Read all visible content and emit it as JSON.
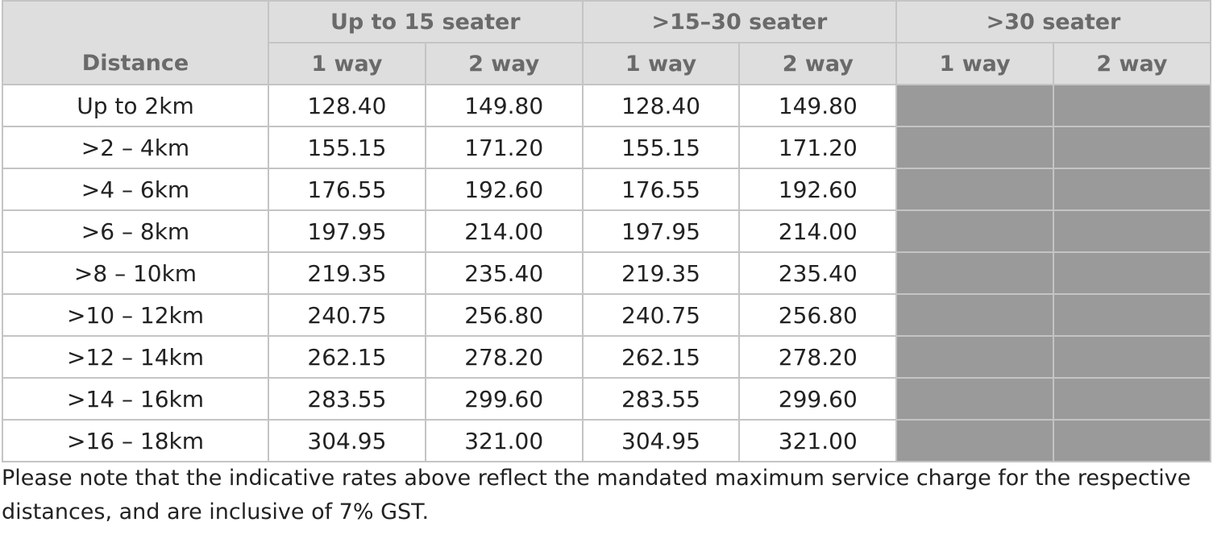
{
  "table": {
    "distance_header": "Distance",
    "groups": [
      "Up to 15 seater",
      ">15–30 seater",
      ">30 seater"
    ],
    "subheaders": [
      "1 way",
      "2 way",
      "1 way",
      "2 way",
      "1 way",
      "2 way"
    ],
    "rows": [
      {
        "distance": "Up to 2km",
        "values": [
          "128.40",
          "149.80",
          "128.40",
          "149.80",
          "",
          ""
        ]
      },
      {
        "distance": ">2 – 4km",
        "values": [
          "155.15",
          "171.20",
          "155.15",
          "171.20",
          "",
          ""
        ]
      },
      {
        "distance": ">4 – 6km",
        "values": [
          "176.55",
          "192.60",
          "176.55",
          "192.60",
          "",
          ""
        ]
      },
      {
        "distance": ">6 – 8km",
        "values": [
          "197.95",
          "214.00",
          "197.95",
          "214.00",
          "",
          ""
        ]
      },
      {
        "distance": ">8 – 10km",
        "values": [
          "219.35",
          "235.40",
          "219.35",
          "235.40",
          "",
          ""
        ]
      },
      {
        "distance": ">10 – 12km",
        "values": [
          "240.75",
          "256.80",
          "240.75",
          "256.80",
          "",
          ""
        ]
      },
      {
        "distance": ">12 – 14km",
        "values": [
          "262.15",
          "278.20",
          "262.15",
          "278.20",
          "",
          ""
        ]
      },
      {
        "distance": ">14 – 16km",
        "values": [
          "283.55",
          "299.60",
          "283.55",
          "299.60",
          "",
          ""
        ]
      },
      {
        "distance": ">16 – 18km",
        "values": [
          "304.95",
          "321.00",
          "304.95",
          "321.00",
          "",
          ""
        ]
      }
    ]
  },
  "note": "Please note that the indicative rates above reflect the mandated maximum service charge for the respective distances, and are inclusive of 7% GST.",
  "colors": {
    "header_bg": "#dedede",
    "header_text": "#6a6a6a",
    "unavailable_cell": "#9a9a9a",
    "border": "#c4c4c4"
  }
}
